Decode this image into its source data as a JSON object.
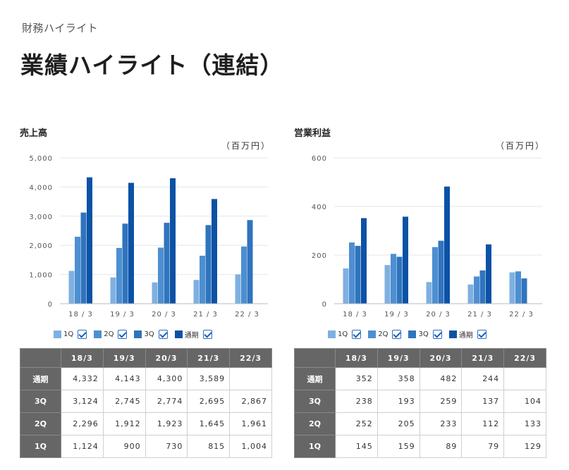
{
  "breadcrumb": "財務ハイライト",
  "page_title": "業績ハイライト（連結）",
  "colors": {
    "1Q": "#7fb0e0",
    "2Q": "#4d8fd1",
    "3Q": "#2f74be",
    "通期": "#0b52a6"
  },
  "legend": [
    {
      "key": "1Q",
      "label": "1Q",
      "checked": true
    },
    {
      "key": "2Q",
      "label": "2Q",
      "checked": true
    },
    {
      "key": "3Q",
      "label": "3Q",
      "checked": true
    },
    {
      "key": "通期",
      "label": "通期",
      "checked": true
    }
  ],
  "chart_data": [
    {
      "type": "bar",
      "title": "売上高",
      "unit": "（百万円）",
      "categories": [
        "18/3",
        "19/3",
        "20/3",
        "21/3",
        "22/3"
      ],
      "ylim": [
        0,
        5000
      ],
      "yticks": [
        "5,000",
        "4,000",
        "3,000",
        "2,000",
        "1,000",
        "0"
      ],
      "series": [
        {
          "name": "1Q",
          "values": [
            1124,
            900,
            730,
            815,
            1004
          ]
        },
        {
          "name": "2Q",
          "values": [
            2296,
            1912,
            1923,
            1645,
            1961
          ]
        },
        {
          "name": "3Q",
          "values": [
            3124,
            2745,
            2774,
            2695,
            2867
          ]
        },
        {
          "name": "通期",
          "values": [
            4332,
            4143,
            4300,
            3589,
            null
          ]
        }
      ]
    },
    {
      "type": "bar",
      "title": "営業利益",
      "unit": "（百万円）",
      "categories": [
        "18/3",
        "19/3",
        "20/3",
        "21/3",
        "22/3"
      ],
      "ylim": [
        0,
        600
      ],
      "yticks": [
        "600",
        "400",
        "200",
        "0"
      ],
      "series": [
        {
          "name": "1Q",
          "values": [
            145,
            159,
            89,
            79,
            129
          ]
        },
        {
          "name": "2Q",
          "values": [
            252,
            205,
            233,
            112,
            133
          ]
        },
        {
          "name": "3Q",
          "values": [
            238,
            193,
            259,
            137,
            104
          ]
        },
        {
          "name": "通期",
          "values": [
            352,
            358,
            482,
            244,
            null
          ]
        }
      ]
    }
  ],
  "tables": [
    {
      "headers": [
        "",
        "18/3",
        "19/3",
        "20/3",
        "21/3",
        "22/3"
      ],
      "rows": [
        {
          "label": "通期",
          "cells": [
            "4,332",
            "4,143",
            "4,300",
            "3,589",
            ""
          ]
        },
        {
          "label": "3Q",
          "cells": [
            "3,124",
            "2,745",
            "2,774",
            "2,695",
            "2,867"
          ]
        },
        {
          "label": "2Q",
          "cells": [
            "2,296",
            "1,912",
            "1,923",
            "1,645",
            "1,961"
          ]
        },
        {
          "label": "1Q",
          "cells": [
            "1,124",
            "900",
            "730",
            "815",
            "1,004"
          ]
        }
      ]
    },
    {
      "headers": [
        "",
        "18/3",
        "19/3",
        "20/3",
        "21/3",
        "22/3"
      ],
      "rows": [
        {
          "label": "通期",
          "cells": [
            "352",
            "358",
            "482",
            "244",
            ""
          ]
        },
        {
          "label": "3Q",
          "cells": [
            "238",
            "193",
            "259",
            "137",
            "104"
          ]
        },
        {
          "label": "2Q",
          "cells": [
            "252",
            "205",
            "233",
            "112",
            "133"
          ]
        },
        {
          "label": "1Q",
          "cells": [
            "145",
            "159",
            "89",
            "79",
            "129"
          ]
        }
      ]
    }
  ]
}
